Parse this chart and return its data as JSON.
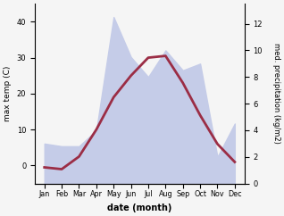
{
  "months": [
    "Jan",
    "Feb",
    "Mar",
    "Apr",
    "May",
    "Jun",
    "Jul",
    "Aug",
    "Sep",
    "Oct",
    "Nov",
    "Dec"
  ],
  "temp": [
    -0.5,
    -1.0,
    2.5,
    10.0,
    19.0,
    25.0,
    30.0,
    30.5,
    23.0,
    14.0,
    6.0,
    1.0
  ],
  "precip": [
    3.0,
    2.8,
    2.8,
    4.0,
    12.5,
    9.5,
    8.0,
    10.0,
    8.5,
    9.0,
    2.0,
    4.5
  ],
  "temp_color": "#9b2d45",
  "precip_fill_color": "#c5cce8",
  "precip_edge_color": "#b0b8e0",
  "temp_ylim": [
    -5,
    45
  ],
  "precip_ylim": [
    0,
    13.5
  ],
  "temp_yticks": [
    0,
    10,
    20,
    30,
    40
  ],
  "precip_yticks": [
    0,
    2,
    4,
    6,
    8,
    10,
    12
  ],
  "xlabel": "date (month)",
  "ylabel_left": "max temp (C)",
  "ylabel_right": "med. precipitation (kg/m2)",
  "bg_color": "#f5f5f5"
}
